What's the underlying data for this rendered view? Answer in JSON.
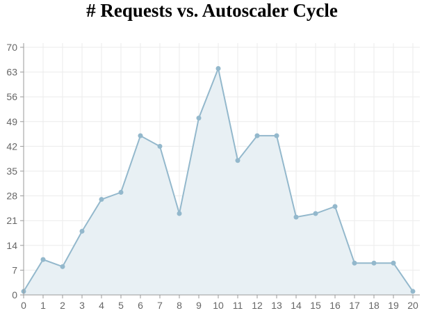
{
  "chart_data": {
    "type": "area",
    "title": "# Requests vs. Autoscaler Cycle",
    "xlabel": "",
    "ylabel": "",
    "x": [
      0,
      1,
      2,
      3,
      4,
      5,
      6,
      7,
      8,
      9,
      10,
      11,
      12,
      13,
      14,
      15,
      16,
      17,
      18,
      19,
      20
    ],
    "series": [
      {
        "values": [
          1,
          10,
          8,
          18,
          27,
          29,
          45,
          42,
          23,
          50,
          64,
          38,
          45,
          45,
          22,
          23,
          25,
          9,
          9,
          9,
          1
        ]
      }
    ],
    "xlim": [
      0,
      20
    ],
    "ylim": [
      0,
      70
    ],
    "x_ticks": [
      "0",
      "1",
      "2",
      "3",
      "4",
      "5",
      "6",
      "7",
      "8",
      "9",
      "10",
      "11",
      "12",
      "13",
      "14",
      "15",
      "16",
      "17",
      "18",
      "19",
      "20"
    ],
    "y_ticks": [
      "0",
      "7",
      "14",
      "21",
      "28",
      "35",
      "42",
      "49",
      "56",
      "63",
      "70"
    ],
    "grid": true,
    "colors": {
      "line": "#93b8cc",
      "fill": "#e8f0f4",
      "grid": "#ebebeb",
      "axis": "#9a9a9a"
    }
  }
}
